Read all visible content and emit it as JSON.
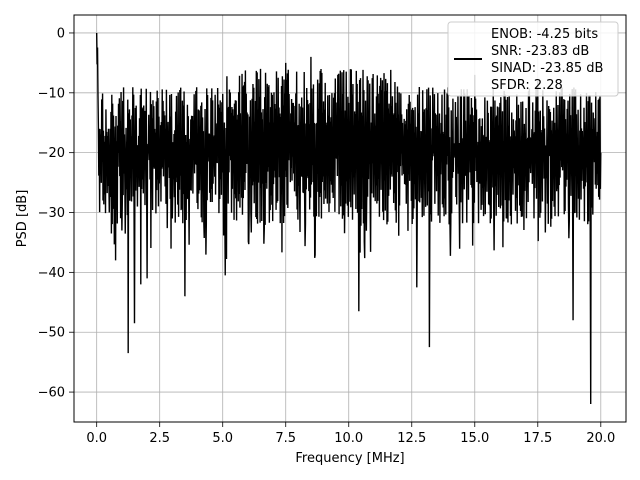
{
  "chart_data": {
    "type": "line",
    "title": "",
    "xlabel": "Frequency [MHz]",
    "ylabel": "PSD [dB]",
    "xlim": [
      -0.9,
      21.0
    ],
    "ylim": [
      -65.0,
      3.0
    ],
    "grid": true,
    "legend_position": "top-right",
    "xticks": [
      0.0,
      2.5,
      5.0,
      7.5,
      10.0,
      12.5,
      15.0,
      17.5,
      20.0
    ],
    "xtick_labels": [
      "0.0",
      "2.5",
      "5.0",
      "7.5",
      "10.0",
      "12.5",
      "15.0",
      "17.5",
      "20.0"
    ],
    "yticks": [
      0,
      -10,
      -20,
      -30,
      -40,
      -50,
      -60
    ],
    "ytick_labels": [
      "0",
      "−10",
      "−20",
      "−30",
      "−40",
      "−50",
      "−60"
    ],
    "series": [
      {
        "color": "#000000",
        "x_start": 0.0,
        "x_end": 20.0,
        "points": 1200,
        "values_sample": [
          [
            0.0,
            0.0
          ],
          [
            0.05,
            -10
          ],
          [
            0.1,
            -16
          ],
          [
            0.25,
            -28
          ],
          [
            0.5,
            -30
          ],
          [
            0.75,
            -38
          ],
          [
            1.0,
            -33
          ],
          [
            1.25,
            -53.5
          ],
          [
            1.5,
            -48.5
          ],
          [
            1.75,
            -42
          ],
          [
            2.0,
            -41
          ],
          [
            2.5,
            -20
          ],
          [
            3.0,
            -31
          ],
          [
            3.5,
            -44
          ],
          [
            4.0,
            -20
          ],
          [
            5.1,
            -40.5
          ],
          [
            6.5,
            -6
          ],
          [
            7.5,
            -5
          ],
          [
            8.5,
            -4
          ],
          [
            10.4,
            -46.5
          ],
          [
            12.7,
            -42.5
          ],
          [
            13.2,
            -52.5
          ],
          [
            15.0,
            -7
          ],
          [
            17.5,
            -8
          ],
          [
            18.9,
            -48
          ],
          [
            19.6,
            -62
          ],
          [
            20.0,
            -20
          ]
        ],
        "band_top": -10,
        "band_bottom": -30
      }
    ],
    "legend": {
      "lines": [
        "ENOB: -4.25 bits",
        "SNR: -23.83 dB",
        "SINAD: -23.85 dB",
        "SFDR: 2.28"
      ]
    }
  },
  "colors": {
    "line": "#000000",
    "grid": "#b0b0b0",
    "axes": "#000000",
    "legend_border": "#cccccc"
  }
}
